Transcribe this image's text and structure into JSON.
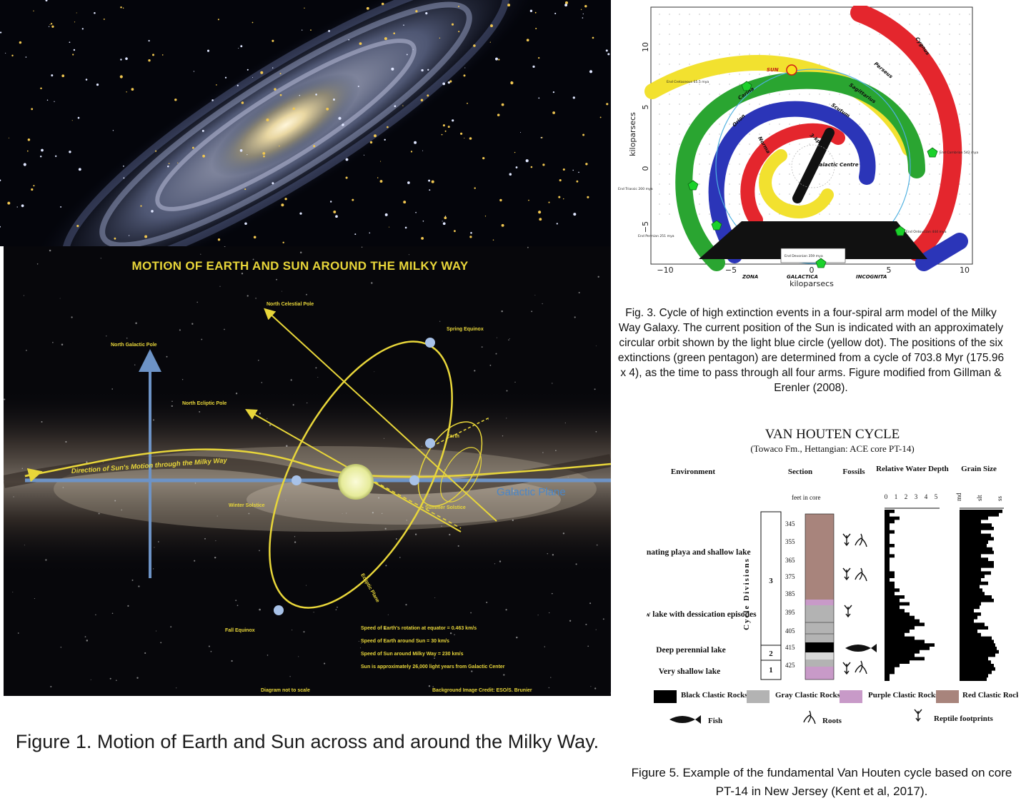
{
  "figure1": {
    "title": "MOTION OF EARTH AND SUN AROUND THE MILKY WAY",
    "labels": {
      "galactic_plane": "Galactic Plane",
      "north_galactic_pole": "North Galactic Pole",
      "north_celestial_pole": "North Celestial Pole",
      "north_ecliptic_pole": "North Ecliptic Pole",
      "ecliptic_plane": "Ecliptic Plane",
      "earth": "Earth",
      "spring_equinox": "Spring Equinox",
      "fall_equinox": "Fall Equinox",
      "summer_solstice": "Summer Solstice",
      "winter_solstice": "Winter Solstice",
      "direction_of_motion": "Direction of Sun's Motion through the Milky Way"
    },
    "facts": [
      "Speed of Earth's rotation at equator = 0.463 km/s",
      "Speed of Earth around Sun = 30 km/s",
      "Speed of Sun around Milky Way = 230 km/s",
      "Sun is approximately 26,000 light years from Galactic Center"
    ],
    "footer_left": "Diagram not to scale",
    "footer_right": "Background Image Credit: ESO/S. Brunier",
    "caption": "Figure 1. Motion of Earth and Sun across and around the Milky Way."
  },
  "figure3": {
    "axis": {
      "x_label": "kiloparsecs",
      "y_label": "kiloparsecs",
      "x_ticks": [
        "−10",
        "−5",
        "0",
        "5",
        "10"
      ],
      "y_ticks": [
        "10",
        "5",
        "0",
        "−5"
      ]
    },
    "arm_labels": [
      "Cygnus",
      "Perseus",
      "Sagittarius",
      "Scutum",
      "Carina",
      "Orion",
      "Norma",
      "3-kpc"
    ],
    "sun_label": "SUN",
    "centre_label": "Galactic Centre",
    "zone_labels": [
      "ZONA",
      "GALACTICA",
      "INCOGNITA"
    ],
    "extinctions": [
      "End Cretaceous 65.5 mya",
      "End Triassic 200 mya",
      "End Permian 251 mya",
      "End Devonian 359 mya",
      "End Ordovician 444 mya",
      "End Cambrian 542 mya"
    ],
    "colors": {
      "arm_red": "#e4262d",
      "arm_yellow": "#f2e12f",
      "arm_green": "#2aa531",
      "arm_blue": "#2b35b8",
      "orbit": "#4fb0e0",
      "pentagon": "#1bd12b"
    },
    "caption": "Fig. 3. Cycle of high extinction events in a four-spiral arm model of the Milky Way Galaxy. The current position of the Sun is indicated with an approximately circular orbit shown by the light blue circle (yellow dot). The positions of the six extinctions (green pentagon) are determined from a cycle of 703.8 Myr (175.96 x 4), as the time to pass through all four arms. Figure modified from Gillman & Erenler (2008)."
  },
  "figure5": {
    "title": "VAN HOUTEN CYCLE",
    "subtitle": "(Towaco Fm., Hettangian: ACE core PT-14)",
    "headers": {
      "environment": "Environment",
      "section": "Section",
      "fossils": "Fossils",
      "water_depth": "Relative Water Depth",
      "grain_size": "Grain Size"
    },
    "feet_label": "feet in core",
    "depth_ticks": [
      "345",
      "355",
      "365",
      "375",
      "385",
      "395",
      "405",
      "415",
      "425"
    ],
    "water_ticks": [
      "0",
      "1",
      "2",
      "3",
      "4",
      "5"
    ],
    "grain_ticks": [
      "md",
      "slt",
      "ss"
    ],
    "cycle_divisions_label": "Cycle Divisions",
    "divisions": [
      "3",
      "2",
      "1"
    ],
    "environments": [
      "Alternating playa and shallow lake",
      "Shallow lake with dessication episodes",
      "Deep perennial lake",
      "Very shallow lake"
    ],
    "legend": [
      {
        "label": "Black Clastic Rocks",
        "color": "#000000"
      },
      {
        "label": "Gray Clastic Rocks",
        "color": "#b3b3b3"
      },
      {
        "label": "Purple Clastic Rocks",
        "color": "#c89ac8"
      },
      {
        "label": "Red Clastic Rocks",
        "color": "#a8847c"
      }
    ],
    "fossil_legend": [
      "Fish",
      "Roots",
      "Reptile footprints"
    ],
    "caption": "Figure 5. Example of the fundamental Van Houten cycle based on core PT-14 in New Jersey (Kent et al, 2017)."
  }
}
